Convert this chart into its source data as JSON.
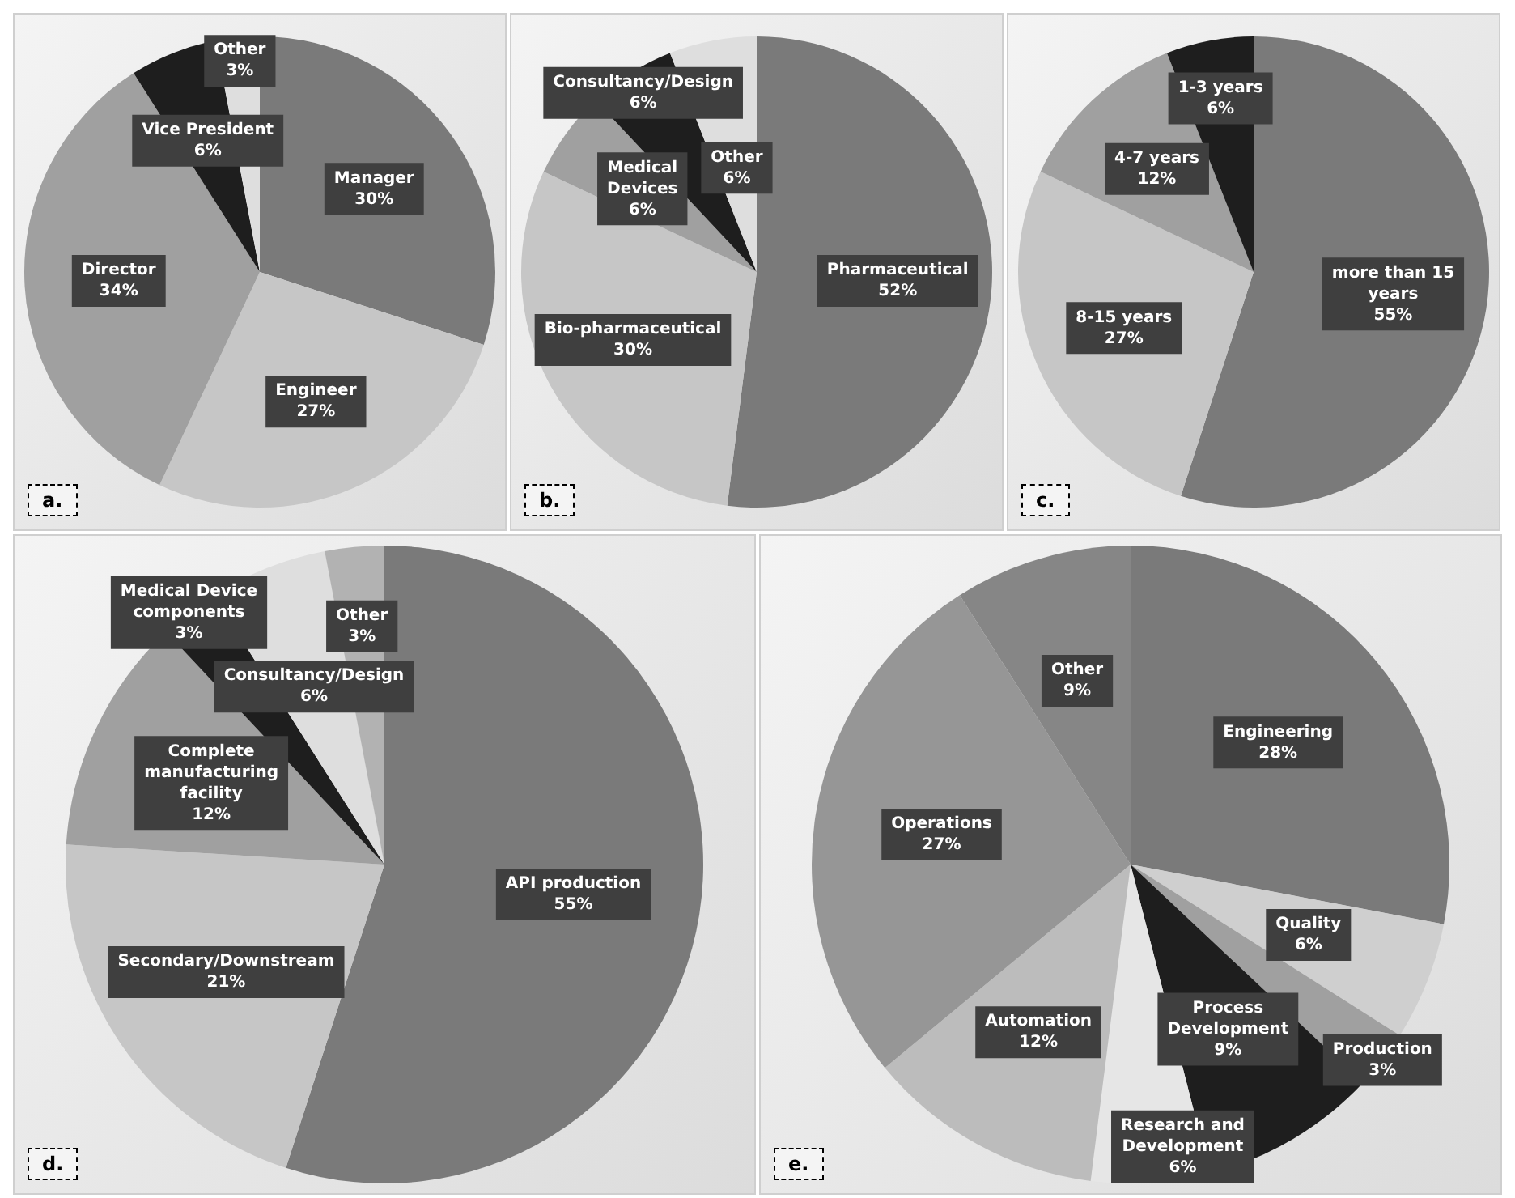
{
  "chart_data": [
    {
      "type": "pie",
      "categories": [
        "Manager",
        "Engineer",
        "Director",
        "Vice President",
        "Other"
      ],
      "values": [
        30,
        27,
        34,
        6,
        3
      ],
      "value_labels": [
        "30%",
        "27%",
        "34%",
        "6%",
        "3%"
      ],
      "colors": [
        "#7a7a7a",
        "#c6c6c6",
        "#a0a0a0",
        "#1e1e1e",
        "#dedede"
      ],
      "legend": false,
      "annotations": [
        "a."
      ]
    },
    {
      "type": "pie",
      "categories": [
        "Pharmaceutical",
        "Bio-pharmaceutical",
        "Medical Devices",
        "Consultancy/Design",
        "Other"
      ],
      "values": [
        52,
        30,
        6,
        6,
        6
      ],
      "value_labels": [
        "52%",
        "30%",
        "6%",
        "6%",
        "6%"
      ],
      "colors": [
        "#7a7a7a",
        "#c6c6c6",
        "#a0a0a0",
        "#1e1e1e",
        "#dedede"
      ],
      "legend": false,
      "annotations": [
        "b."
      ]
    },
    {
      "type": "pie",
      "categories": [
        "more than 15 years",
        "8-15 years",
        "4-7 years",
        "1-3 years"
      ],
      "values": [
        55,
        27,
        12,
        6
      ],
      "value_labels": [
        "55%",
        "27%",
        "12%",
        "6%"
      ],
      "colors": [
        "#7a7a7a",
        "#c6c6c6",
        "#a0a0a0",
        "#1e1e1e"
      ],
      "legend": false,
      "annotations": [
        "c."
      ]
    },
    {
      "type": "pie",
      "categories": [
        "API production",
        "Secondary/Downstream",
        "Complete manufacturing facility",
        "Medical Device components",
        "Consultancy/Design",
        "Other"
      ],
      "values": [
        55,
        21,
        12,
        3,
        6,
        3
      ],
      "value_labels": [
        "55%",
        "21%",
        "12%",
        "3%",
        "6%",
        "3%"
      ],
      "colors": [
        "#7a7a7a",
        "#c6c6c6",
        "#a0a0a0",
        "#1e1e1e",
        "#dedede",
        "#b2b2b2"
      ],
      "legend": false,
      "annotations": [
        "d."
      ]
    },
    {
      "type": "pie",
      "categories": [
        "Engineering",
        "Quality",
        "Production",
        "Process Development",
        "Research and Development",
        "Automation",
        "Operations",
        "Other"
      ],
      "values": [
        28,
        6,
        3,
        9,
        6,
        12,
        27,
        9
      ],
      "value_labels": [
        "28%",
        "6%",
        "3%",
        "9%",
        "6%",
        "12%",
        "27%",
        "9%"
      ],
      "colors": [
        "#7a7a7a",
        "#cfcfcf",
        "#a0a0a0",
        "#1e1e1e",
        "#e6e6e6",
        "#bcbcbc",
        "#969696",
        "#868686"
      ],
      "legend": false,
      "annotations": [
        "e."
      ]
    }
  ]
}
